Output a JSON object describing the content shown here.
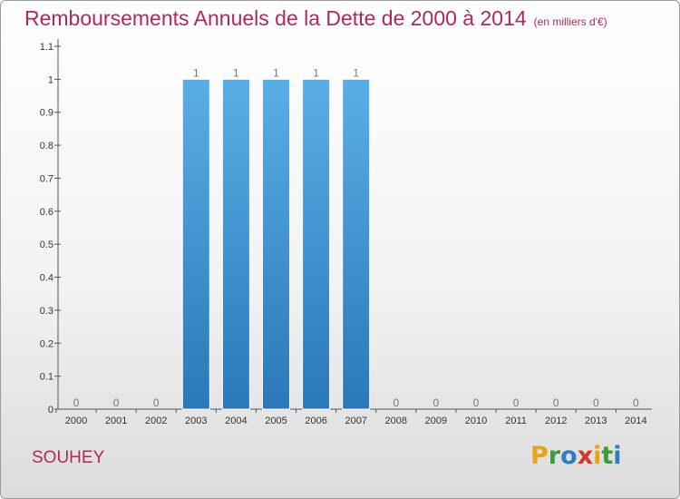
{
  "chart_data": {
    "type": "bar",
    "title": "Remboursements Annuels de la Dette de 2000 à 2014",
    "subtitle": "(en milliers d'€)",
    "categories": [
      "2000",
      "2001",
      "2002",
      "2003",
      "2004",
      "2005",
      "2006",
      "2007",
      "2008",
      "2009",
      "2010",
      "2011",
      "2012",
      "2013",
      "2014"
    ],
    "values": [
      0,
      0,
      0,
      1,
      1,
      1,
      1,
      1,
      0,
      0,
      0,
      0,
      0,
      0,
      0
    ],
    "data_labels": [
      "0",
      "0",
      "0",
      "1",
      "1",
      "1",
      "1",
      "1",
      "0",
      "0",
      "0",
      "0",
      "0",
      "0",
      "0"
    ],
    "ylim": [
      0,
      1.1
    ],
    "yticks": [
      0,
      0.1,
      0.2,
      0.3,
      0.4,
      0.5,
      0.6,
      0.7,
      0.8,
      0.9,
      1,
      1.1
    ],
    "ytick_labels": [
      "0",
      "0.1",
      "0.2",
      "0.3",
      "0.4",
      "0.5",
      "0.6",
      "0.7",
      "0.8",
      "0.9",
      "1",
      "1.1"
    ],
    "xlabel": "",
    "ylabel": "",
    "grid": false,
    "bar_color_top": "#5aaee6",
    "bar_color_bottom": "#2a78b8"
  },
  "location": "SOUHEY",
  "logo": {
    "text": "Proxiti",
    "letters": [
      "P",
      "r",
      "o",
      "x",
      "i",
      "t",
      "i"
    ],
    "colors": [
      "#e8a317",
      "#3f9a3f",
      "#2d7fc1",
      "#d9362b",
      "#e8a317",
      "#3f9a3f",
      "#2d7fc1"
    ]
  },
  "colors": {
    "title": "#b3285a",
    "axis": "#555555"
  }
}
